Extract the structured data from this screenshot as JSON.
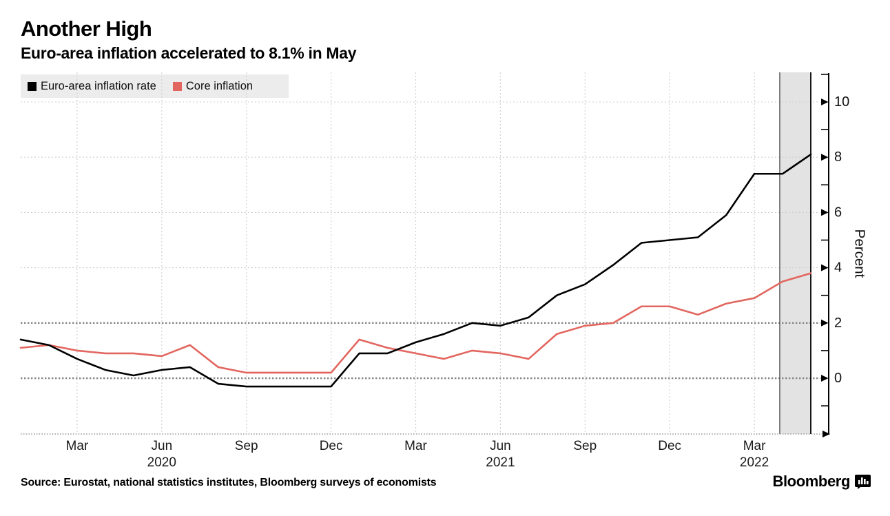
{
  "header": {
    "title": "Another High",
    "subtitle": "Euro-area inflation accelerated to 8.1% in May"
  },
  "legend": {
    "items": [
      {
        "label": "Euro-area inflation rate",
        "color": "#000000"
      },
      {
        "label": "Core inflation",
        "color": "#e2665f"
      }
    ]
  },
  "chart_data": {
    "type": "line",
    "title": "Another High",
    "subtitle": "Euro-area inflation accelerated to 8.1% in May",
    "ylabel": "Percent",
    "ylim": [
      -2,
      11
    ],
    "y_major_ticks": [
      0,
      2,
      4,
      6,
      8,
      10
    ],
    "y_minor_ticks": [
      -1,
      1,
      3,
      5,
      7,
      9,
      11
    ],
    "emphasized_gridlines": [
      0,
      2
    ],
    "grid": "both",
    "legend_position": "top-left",
    "x": [
      "Jan 2020",
      "Feb 2020",
      "Mar 2020",
      "Apr 2020",
      "May 2020",
      "Jun 2020",
      "Jul 2020",
      "Aug 2020",
      "Sep 2020",
      "Oct 2020",
      "Nov 2020",
      "Dec 2020",
      "Jan 2021",
      "Feb 2021",
      "Mar 2021",
      "Apr 2021",
      "May 2021",
      "Jun 2021",
      "Jul 2021",
      "Aug 2021",
      "Sep 2021",
      "Oct 2021",
      "Nov 2021",
      "Dec 2021",
      "Jan 2022",
      "Feb 2022",
      "Mar 2022",
      "Apr 2022",
      "May 2022"
    ],
    "x_ticks": [
      {
        "month_index": 2,
        "label": "Mar"
      },
      {
        "month_index": 5,
        "label": "Jun"
      },
      {
        "month_index": 8,
        "label": "Sep"
      },
      {
        "month_index": 11,
        "label": "Dec"
      },
      {
        "month_index": 14,
        "label": "Mar"
      },
      {
        "month_index": 17,
        "label": "Jun"
      },
      {
        "month_index": 20,
        "label": "Sep"
      },
      {
        "month_index": 23,
        "label": "Dec"
      },
      {
        "month_index": 26,
        "label": "Mar"
      }
    ],
    "x_year_labels": [
      {
        "month_index": 5,
        "label": "2020"
      },
      {
        "month_index": 17,
        "label": "2021"
      },
      {
        "month_index": 26,
        "label": "2022"
      }
    ],
    "highlight_region": {
      "start_month_index": 26.9,
      "end_month_index": 28.2,
      "fill": "#e3e3e3"
    },
    "series": [
      {
        "name": "Euro-area inflation rate",
        "color": "#000000",
        "values": [
          1.4,
          1.2,
          0.7,
          0.3,
          0.1,
          0.3,
          0.4,
          -0.2,
          -0.3,
          -0.3,
          -0.3,
          -0.3,
          0.9,
          0.9,
          1.3,
          1.6,
          2.0,
          1.9,
          2.2,
          3.0,
          3.4,
          4.1,
          4.9,
          5.0,
          5.1,
          5.9,
          7.4,
          7.4,
          8.1
        ]
      },
      {
        "name": "Core inflation",
        "color": "#e2665f",
        "values": [
          1.1,
          1.2,
          1.0,
          0.9,
          0.9,
          0.8,
          1.2,
          0.4,
          0.2,
          0.2,
          0.2,
          0.2,
          1.4,
          1.1,
          0.9,
          0.7,
          1.0,
          0.9,
          0.7,
          1.6,
          1.9,
          2.0,
          2.6,
          2.6,
          2.3,
          2.7,
          2.9,
          3.5,
          3.8
        ]
      }
    ]
  },
  "footer": {
    "source": "Source: Eurostat, national statistics institutes, Bloomberg surveys of economists",
    "brand": "Bloomberg"
  }
}
